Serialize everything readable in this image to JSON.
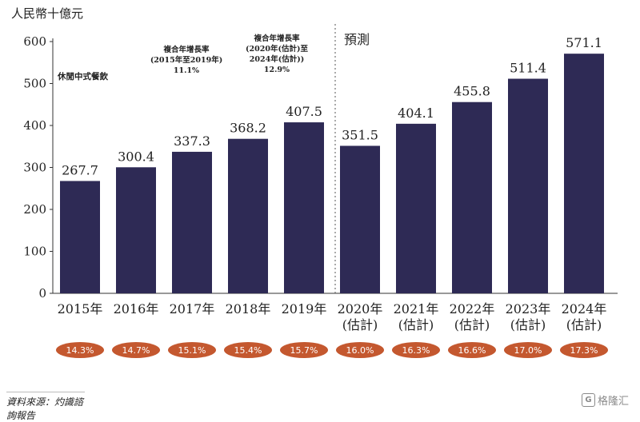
{
  "chart_data": {
    "type": "bar",
    "unit": "人民幣十億元",
    "series_label": "休閒中式餐飲",
    "categories": [
      [
        "2015年"
      ],
      [
        "2016年"
      ],
      [
        "2017年"
      ],
      [
        "2018年"
      ],
      [
        "2019年"
      ],
      [
        "2020年",
        "(估計)"
      ],
      [
        "2021年",
        "(估計)"
      ],
      [
        "2022年",
        "(估計)"
      ],
      [
        "2023年",
        "(估計)"
      ],
      [
        "2024年",
        "(估計)"
      ]
    ],
    "values": [
      267.7,
      300.4,
      337.3,
      368.2,
      407.5,
      351.5,
      404.1,
      455.8,
      511.4,
      571.1
    ],
    "value_labels": [
      "267.7",
      "300.4",
      "337.3",
      "368.2",
      "407.5",
      "351.5",
      "404.1",
      "455.8",
      "511.4",
      "571.1"
    ],
    "percentages": [
      "14.3%",
      "14.7%",
      "15.1%",
      "15.4%",
      "15.7%",
      "16.0%",
      "16.3%",
      "16.6%",
      "17.0%",
      "17.3%"
    ],
    "yticks": [
      0,
      100,
      200,
      300,
      400,
      500,
      600
    ],
    "ylim": [
      0,
      600
    ],
    "forecast_label": "預測",
    "cagr_historical": [
      "複合年增長率",
      "(2015年至2019年)",
      "11.1%"
    ],
    "cagr_forecast": [
      "複合年增長率",
      "(2020年(估計)至",
      "2024年(估計))",
      "12.9%"
    ],
    "colors": {
      "bar": "#2e2a55",
      "pill": "#c4582f",
      "pill_text": "#ffffff"
    }
  },
  "source": "資料來源：灼識諮詢報告",
  "watermark": {
    "logo": "G",
    "text": "格隆汇"
  }
}
